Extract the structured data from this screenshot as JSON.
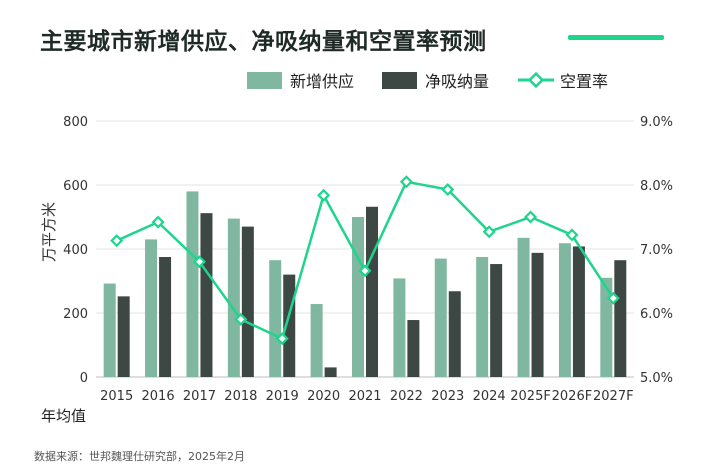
{
  "title": "主要城市新增供应、净吸纳量和空置率预测",
  "source": "数据来源：世邦魏理仕研究部，2025年2月",
  "colors": {
    "supply": "#7fb7a1",
    "absorption": "#3d4845",
    "vacancy": "#1fd48c",
    "accent": "#1fd48c",
    "grid": "#e3e3e3"
  },
  "chart_data": {
    "type": "bar+line",
    "categories": [
      "2015",
      "2016",
      "2017",
      "2018",
      "2019",
      "2020",
      "2021",
      "2022",
      "2023",
      "2024",
      "2025F",
      "2026F",
      "2027F"
    ],
    "series": [
      {
        "name": "新增供应",
        "type": "bar",
        "axis": "left",
        "values": [
          292,
          430,
          580,
          495,
          365,
          228,
          500,
          308,
          370,
          375,
          435,
          418,
          310
        ]
      },
      {
        "name": "净吸纳量",
        "type": "bar",
        "axis": "left",
        "values": [
          252,
          375,
          512,
          470,
          320,
          30,
          532,
          178,
          268,
          353,
          388,
          408,
          365
        ]
      },
      {
        "name": "空置率",
        "type": "line",
        "axis": "right",
        "values": [
          7.13,
          7.42,
          6.8,
          5.9,
          5.6,
          7.84,
          6.66,
          8.05,
          7.93,
          7.27,
          7.5,
          7.22,
          6.23
        ]
      }
    ],
    "ylabel": "万平方米",
    "xlabel": "年均值",
    "ylim": [
      0,
      800
    ],
    "yticks": [
      0,
      200,
      400,
      600,
      800
    ],
    "y2lim": [
      5.0,
      9.0
    ],
    "y2ticks": [
      "5.0%",
      "6.0%",
      "7.0%",
      "8.0%",
      "9.0%"
    ],
    "legend": [
      "新增供应",
      "净吸纳量",
      "空置率"
    ],
    "legend_position": "top-right",
    "grid": true
  }
}
